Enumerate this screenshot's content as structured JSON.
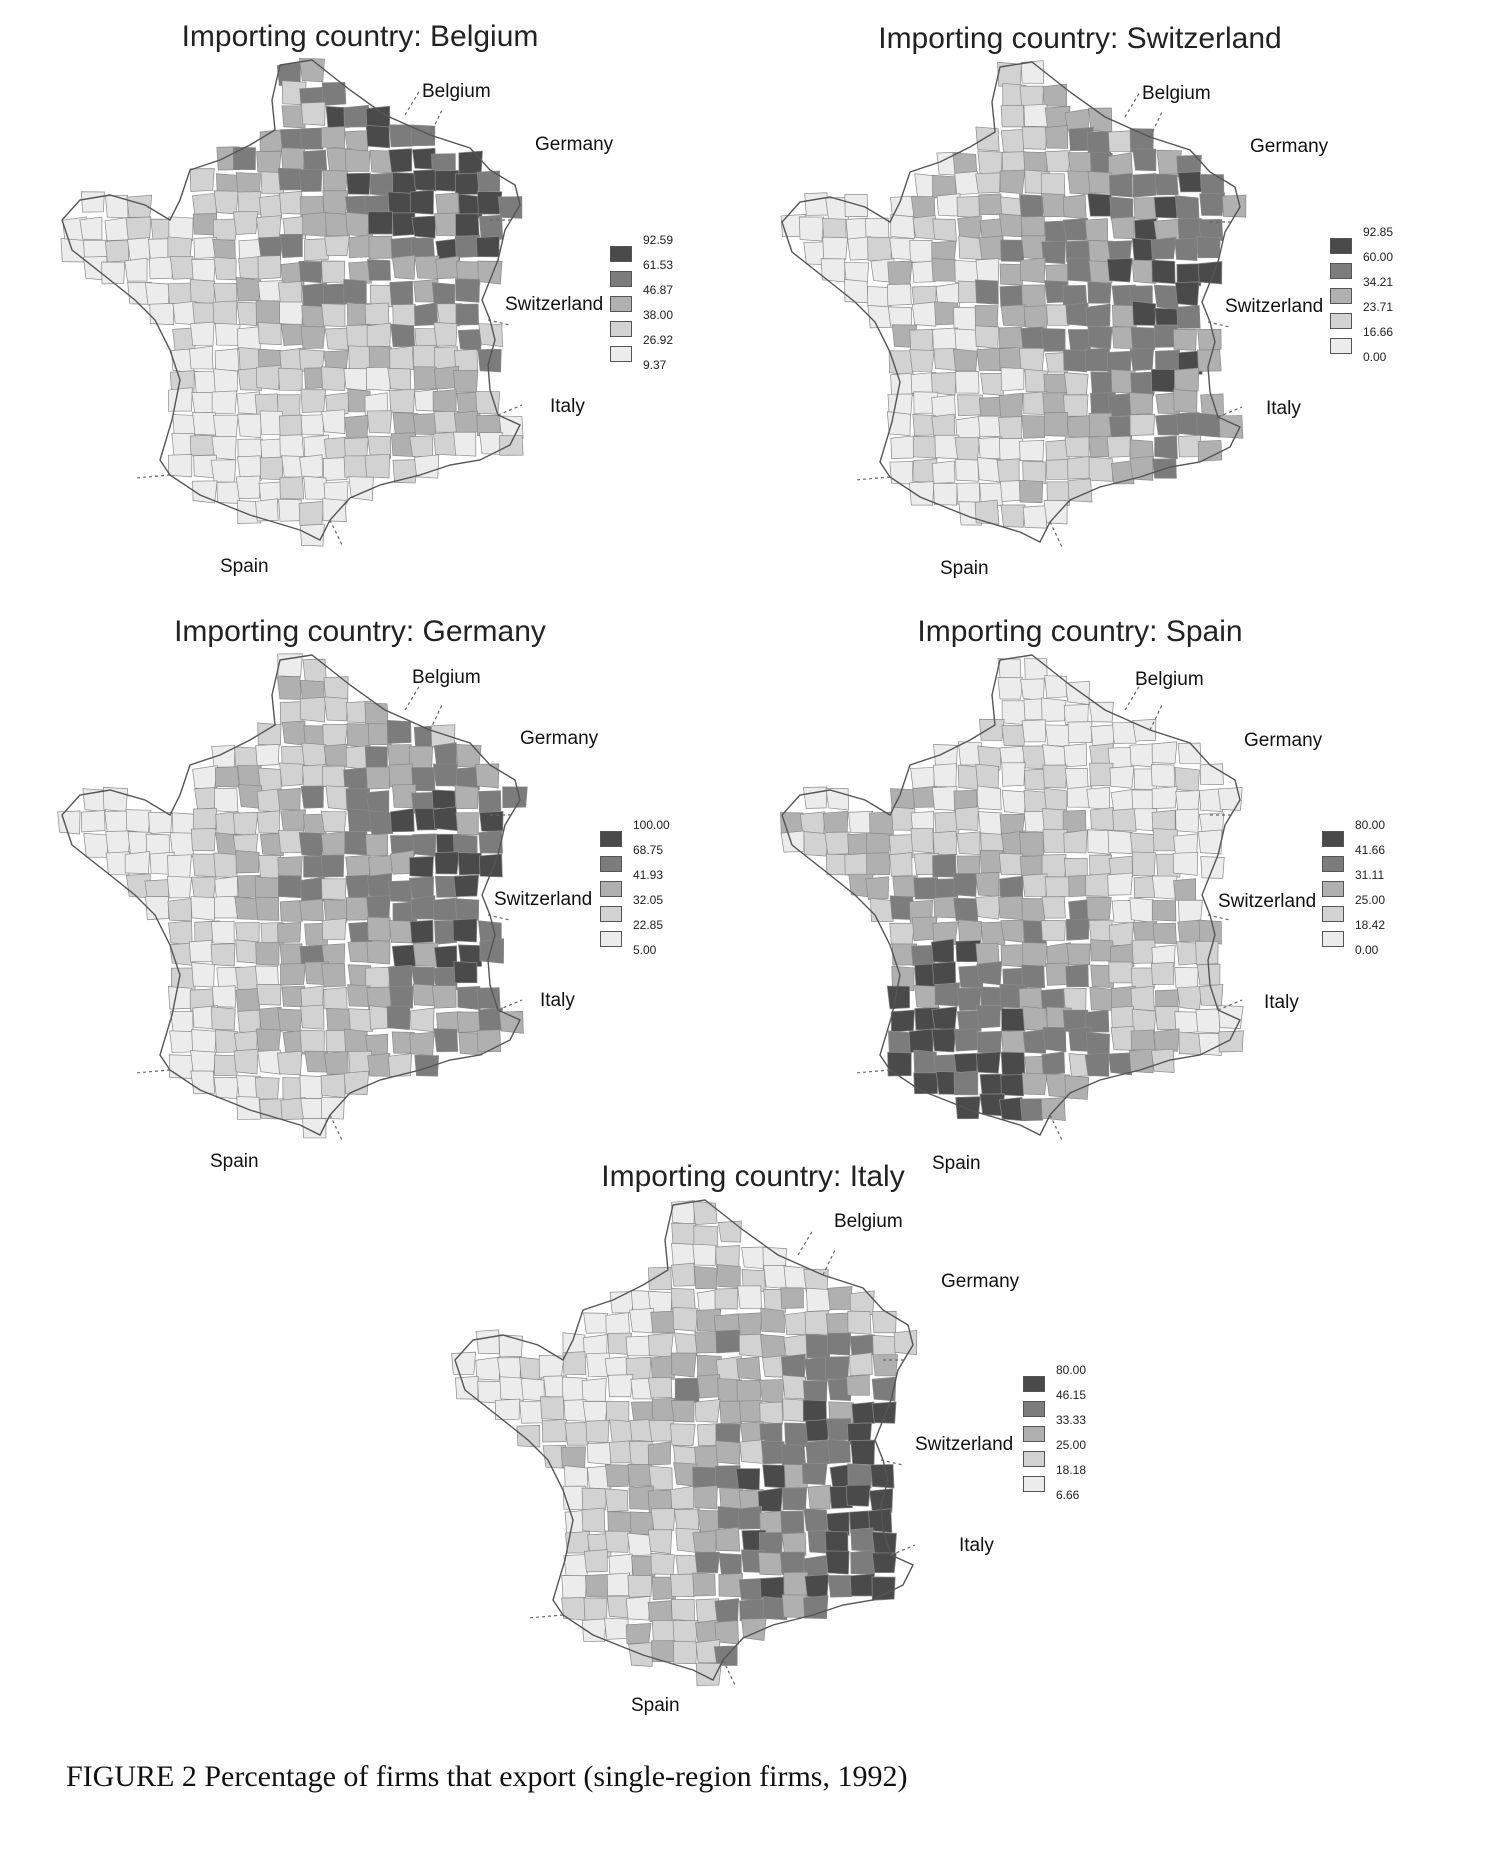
{
  "maps": [
    {
      "id": "belgium",
      "title": "Importing country: Belgium",
      "labels": {
        "belgium": "Belgium",
        "germany": "Germany",
        "switzerland": "Switzerland",
        "italy": "Italy",
        "spain": "Spain"
      },
      "legend": [
        "92.59",
        "61.53",
        "46.87",
        "38.00",
        "26.92",
        "9.37"
      ],
      "darkness_focus": "north-east"
    },
    {
      "id": "switzerland",
      "title": "Importing country: Switzerland",
      "labels": {
        "belgium": "Belgium",
        "germany": "Germany",
        "switzerland": "Switzerland",
        "italy": "Italy",
        "spain": "Spain"
      },
      "legend": [
        "92.85",
        "60.00",
        "34.21",
        "23.71",
        "16.66",
        "0.00"
      ],
      "darkness_focus": "east"
    },
    {
      "id": "germany",
      "title": "Importing country: Germany",
      "labels": {
        "belgium": "Belgium",
        "germany": "Germany",
        "switzerland": "Switzerland",
        "italy": "Italy",
        "spain": "Spain"
      },
      "legend": [
        "100.00",
        "68.75",
        "41.93",
        "32.05",
        "22.85",
        "5.00"
      ],
      "darkness_focus": "east"
    },
    {
      "id": "spain",
      "title": "Importing country: Spain",
      "labels": {
        "belgium": "Belgium",
        "germany": "Germany",
        "switzerland": "Switzerland",
        "italy": "Italy",
        "spain": "Spain"
      },
      "legend": [
        "80.00",
        "41.66",
        "31.11",
        "25.00",
        "18.42",
        "0.00"
      ],
      "darkness_focus": "south-west"
    },
    {
      "id": "italy",
      "title": "Importing country: Italy",
      "labels": {
        "belgium": "Belgium",
        "germany": "Germany",
        "switzerland": "Switzerland",
        "italy": "Italy",
        "spain": "Spain"
      },
      "legend": [
        "80.00",
        "46.15",
        "33.33",
        "25.00",
        "18.18",
        "6.66"
      ],
      "darkness_focus": "south-east"
    }
  ],
  "legend_colors": [
    "#4a4a4a",
    "#7c7c7c",
    "#b0b0b0",
    "#d2d2d2",
    "#ececec"
  ],
  "caption": "FIGURE 2  Percentage of firms that export (single-region firms, 1992)"
}
